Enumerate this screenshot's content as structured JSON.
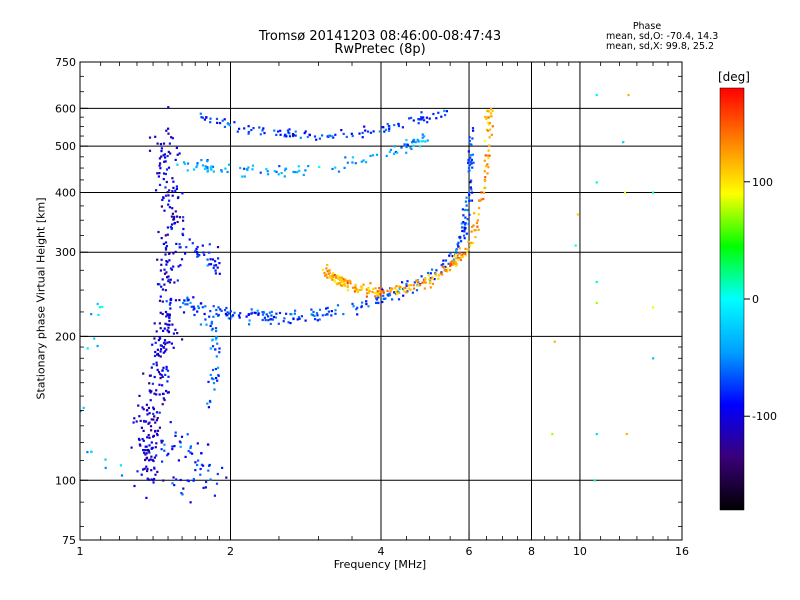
{
  "chart_data": {
    "type": "scatter",
    "title": "Tromsø 20141203 08:46:00-08:47:43",
    "subtitle": "RwPretec (8p)",
    "xlabel": "Frequency [MHz]",
    "ylabel": "Stationary phase Virtual Height [km]",
    "x_scale": "log",
    "y_scale": "log",
    "xlim": [
      1,
      16
    ],
    "ylim": [
      75,
      750
    ],
    "x_ticks": [
      1,
      2,
      4,
      6,
      8,
      10,
      16
    ],
    "x_tick_labels": [
      "1",
      "2",
      "4",
      "6",
      "8",
      "10",
      "16"
    ],
    "x_gridlines": [
      2,
      4,
      6,
      8,
      10
    ],
    "y_ticks": [
      75,
      100,
      200,
      300,
      400,
      500,
      600,
      750
    ],
    "y_tick_labels": [
      "75",
      "100",
      "200",
      "300",
      "400",
      "500",
      "600",
      "750"
    ],
    "y_gridlines": [
      100,
      200,
      300,
      400,
      500,
      600
    ],
    "grid": true,
    "legend_title": "Phase",
    "legend_lines": [
      "mean, sd,O: -70.4, 14.3",
      "mean, sd,X:  99.8, 25.2"
    ],
    "colorbar": {
      "label": "[deg]",
      "range": [
        -180,
        180
      ],
      "ticks": [
        100,
        0,
        -100
      ],
      "tick_labels": [
        "100",
        "0",
        "-100"
      ],
      "colors": [
        "#000000",
        "#3a007a",
        "#0000ff",
        "#00a0ff",
        "#00ffff",
        "#00ff00",
        "#ffff00",
        "#ff8000",
        "#ff0000"
      ]
    },
    "traces": [
      {
        "points": [
          [
            1.5,
            540
          ],
          [
            1.47,
            480
          ],
          [
            1.5,
            400
          ],
          [
            1.52,
            330
          ],
          [
            1.5,
            280
          ],
          [
            1.5,
            230
          ],
          [
            1.48,
            200
          ],
          [
            1.45,
            170
          ],
          [
            1.42,
            150
          ],
          [
            1.38,
            130
          ],
          [
            1.35,
            115
          ],
          [
            1.4,
            105
          ]
        ],
        "phase": -105,
        "count": 360,
        "spread": [
          0.05,
          0.12
        ]
      },
      {
        "points": [
          [
            1.5,
            120
          ],
          [
            1.6,
            118
          ],
          [
            1.7,
            112
          ],
          [
            1.8,
            110
          ],
          [
            1.85,
            100
          ],
          [
            1.7,
            98
          ],
          [
            1.55,
            96
          ]
        ],
        "phase": -80,
        "count": 60,
        "spread": [
          0.05,
          0.06
        ]
      },
      {
        "points": [
          [
            1.55,
            300
          ],
          [
            1.65,
            310
          ],
          [
            1.75,
            300
          ],
          [
            1.85,
            290
          ],
          [
            1.9,
            280
          ]
        ],
        "phase": -85,
        "count": 40,
        "spread": [
          0.03,
          0.05
        ]
      },
      {
        "points": [
          [
            1.6,
            240
          ],
          [
            1.7,
            230
          ],
          [
            1.85,
            225
          ],
          [
            2.0,
            222
          ],
          [
            2.3,
            220
          ],
          [
            2.6,
            220
          ],
          [
            3.0,
            222
          ],
          [
            3.4,
            228
          ],
          [
            3.8,
            236
          ],
          [
            4.2,
            245
          ],
          [
            4.6,
            255
          ],
          [
            5.0,
            268
          ],
          [
            5.4,
            285
          ],
          [
            5.7,
            305
          ],
          [
            5.9,
            340
          ],
          [
            6.0,
            400
          ],
          [
            6.05,
            470
          ],
          [
            6.05,
            560
          ]
        ],
        "phase": -70,
        "count": 280,
        "spread": [
          0.015,
          0.03
        ]
      },
      {
        "points": [
          [
            1.75,
            220
          ],
          [
            1.85,
            200
          ],
          [
            1.88,
            180
          ],
          [
            1.85,
            160
          ],
          [
            1.8,
            145
          ]
        ],
        "phase": -65,
        "count": 40,
        "spread": [
          0.02,
          0.06
        ]
      },
      {
        "points": [
          [
            3.1,
            275
          ],
          [
            3.25,
            265
          ],
          [
            3.4,
            258
          ],
          [
            3.7,
            250
          ],
          [
            4.0,
            248
          ],
          [
            4.5,
            252
          ],
          [
            5.0,
            262
          ],
          [
            5.5,
            280
          ],
          [
            5.9,
            300
          ],
          [
            6.2,
            340
          ],
          [
            6.45,
            420
          ],
          [
            6.55,
            500
          ],
          [
            6.6,
            600
          ]
        ],
        "phase": 120,
        "count": 260,
        "spread": [
          0.015,
          0.025
        ]
      },
      {
        "points": [
          [
            1.75,
            580
          ],
          [
            1.9,
            560
          ],
          [
            2.2,
            540
          ],
          [
            2.6,
            530
          ],
          [
            3.0,
            525
          ],
          [
            3.5,
            530
          ],
          [
            4.0,
            545
          ],
          [
            4.5,
            560
          ],
          [
            5.0,
            575
          ],
          [
            5.5,
            590
          ]
        ],
        "phase": -75,
        "count": 120,
        "spread": [
          0.015,
          0.02
        ]
      },
      {
        "points": [
          [
            1.6,
            460
          ],
          [
            1.8,
            450
          ],
          [
            2.0,
            445
          ],
          [
            2.5,
            440
          ],
          [
            3.0,
            450
          ],
          [
            3.5,
            460
          ],
          [
            4.0,
            480
          ],
          [
            4.5,
            500
          ],
          [
            5.0,
            520
          ]
        ],
        "phase": -40,
        "count": 110,
        "spread": [
          0.02,
          0.025
        ]
      },
      {
        "points": [
          [
            1.05,
            220
          ],
          [
            1.12,
            230
          ],
          [
            1.0,
            160
          ],
          [
            1.05,
            110
          ],
          [
            1.15,
            110
          ],
          [
            1.3,
            95
          ]
        ],
        "phase": -30,
        "count": 18,
        "spread": [
          0.04,
          0.05
        ]
      },
      {
        "points": [
          [
            10.8,
            640
          ],
          [
            12.5,
            640
          ],
          [
            12.2,
            510
          ],
          [
            12.3,
            400
          ],
          [
            14.0,
            400
          ],
          [
            10.8,
            420
          ],
          [
            9.9,
            360
          ],
          [
            9.8,
            310
          ],
          [
            10.8,
            260
          ],
          [
            10.8,
            235
          ],
          [
            14.0,
            230
          ],
          [
            14.0,
            180
          ],
          [
            8.9,
            195
          ],
          [
            8.8,
            125
          ],
          [
            10.8,
            125
          ],
          [
            12.4,
            125
          ],
          [
            10.7,
            100
          ]
        ],
        "phase": 40,
        "count": 17,
        "spread": [
          0.0,
          0.0
        ]
      }
    ]
  }
}
